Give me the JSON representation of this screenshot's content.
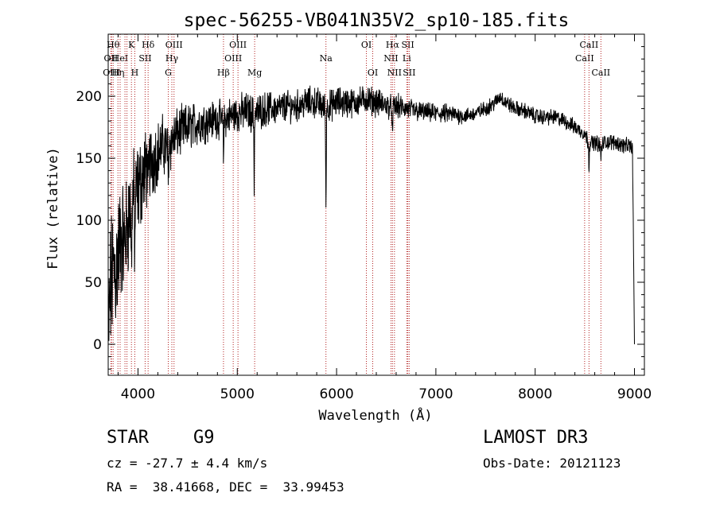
{
  "chart_data": {
    "type": "line",
    "title": "spec-56255-VB041N35V2_sp10-185.fits",
    "xlabel": "Wavelength (Å)",
    "ylabel": "Flux (relative)",
    "xlim": [
      3700,
      9100
    ],
    "ylim": [
      -25,
      250
    ],
    "xticks": [
      4000,
      5000,
      6000,
      7000,
      8000,
      9000
    ],
    "yticks": [
      0,
      50,
      100,
      150,
      200
    ],
    "spectrum_anchors": {
      "x": [
        3700,
        3720,
        3740,
        3760,
        3780,
        3800,
        3820,
        3840,
        3860,
        3880,
        3900,
        3920,
        3940,
        3960,
        3980,
        4000,
        4050,
        4100,
        4150,
        4200,
        4250,
        4300,
        4350,
        4400,
        4500,
        4600,
        4700,
        4800,
        4860,
        4900,
        5000,
        5100,
        5170,
        5200,
        5300,
        5400,
        5500,
        5600,
        5700,
        5800,
        5890,
        5950,
        6000,
        6100,
        6200,
        6300,
        6400,
        6500,
        6563,
        6600,
        6700,
        6800,
        6900,
        7000,
        7100,
        7200,
        7300,
        7400,
        7500,
        7600,
        7650,
        7700,
        7800,
        7900,
        8000,
        8100,
        8200,
        8300,
        8400,
        8498,
        8542,
        8600,
        8662,
        8700,
        8800,
        8900,
        8950,
        8980,
        9000
      ],
      "y": [
        0,
        40,
        55,
        60,
        60,
        75,
        80,
        90,
        80,
        90,
        100,
        110,
        115,
        120,
        120,
        125,
        135,
        145,
        150,
        155,
        160,
        158,
        165,
        170,
        175,
        178,
        180,
        182,
        180,
        183,
        186,
        188,
        185,
        187,
        190,
        190,
        192,
        192,
        195,
        195,
        190,
        193,
        195,
        195,
        195,
        198,
        195,
        193,
        190,
        192,
        190,
        188,
        187,
        186,
        186,
        185,
        184,
        186,
        190,
        195,
        200,
        195,
        190,
        188,
        184,
        183,
        183,
        180,
        175,
        170,
        162,
        163,
        160,
        163,
        163,
        160,
        160,
        158,
        0
      ],
      "noise_amplitude": [
        45,
        45,
        45,
        45,
        45,
        40,
        40,
        40,
        35,
        35,
        35,
        30,
        30,
        30,
        30,
        30,
        30,
        25,
        25,
        20,
        20,
        18,
        18,
        16,
        15,
        14,
        13,
        12,
        12,
        12,
        12,
        12,
        12,
        11,
        11,
        10,
        10,
        10,
        10,
        10,
        10,
        10,
        10,
        10,
        9,
        9,
        9,
        8,
        8,
        8,
        7,
        7,
        6,
        6,
        6,
        6,
        5,
        5,
        5,
        5,
        5,
        5,
        5,
        5,
        5,
        5,
        5,
        5,
        5,
        5,
        5,
        5,
        5,
        5,
        5,
        5,
        5,
        5,
        5
      ]
    },
    "absorption_dips": [
      {
        "x": 3934,
        "depth": 60
      },
      {
        "x": 3968,
        "depth": 55
      },
      {
        "x": 4102,
        "depth": 30
      },
      {
        "x": 4305,
        "depth": 25
      },
      {
        "x": 4861,
        "depth": 30
      },
      {
        "x": 5170,
        "depth": 55
      },
      {
        "x": 5893,
        "depth": 80
      },
      {
        "x": 6563,
        "depth": 25
      },
      {
        "x": 8542,
        "depth": 20
      },
      {
        "x": 8662,
        "depth": 12
      }
    ],
    "line_markers": [
      {
        "x": 3727,
        "label": "OII",
        "row": 1
      },
      {
        "x": 3734,
        "label": "OIII",
        "row": 2
      },
      {
        "x": 3750,
        "label": "Hθ",
        "row": 0
      },
      {
        "x": 3798,
        "label": "Hη",
        "row": 2
      },
      {
        "x": 3820,
        "label": "HeI",
        "row": 1
      },
      {
        "x": 3869,
        "label": "",
        "row": -1
      },
      {
        "x": 3889,
        "label": "",
        "row": -1
      },
      {
        "x": 3934,
        "label": "K",
        "row": 0
      },
      {
        "x": 3968,
        "label": "H",
        "row": 2
      },
      {
        "x": 4072,
        "label": "SII",
        "row": 1
      },
      {
        "x": 4102,
        "label": "Hδ",
        "row": 0
      },
      {
        "x": 4305,
        "label": "G",
        "row": 2
      },
      {
        "x": 4341,
        "label": "Hγ",
        "row": 1
      },
      {
        "x": 4363,
        "label": "OIII",
        "row": 0
      },
      {
        "x": 4861,
        "label": "Hβ",
        "row": 2
      },
      {
        "x": 4959,
        "label": "OIII",
        "row": 1
      },
      {
        "x": 5007,
        "label": "OIII",
        "row": 0
      },
      {
        "x": 5175,
        "label": "Mg",
        "row": 2
      },
      {
        "x": 5893,
        "label": "Na",
        "row": 1
      },
      {
        "x": 6300,
        "label": "OI",
        "row": 0
      },
      {
        "x": 6364,
        "label": "OI",
        "row": 2
      },
      {
        "x": 6548,
        "label": "NII",
        "row": 1
      },
      {
        "x": 6563,
        "label": "Hα",
        "row": 0
      },
      {
        "x": 6583,
        "label": "NII",
        "row": 2
      },
      {
        "x": 6707,
        "label": "Li",
        "row": 1
      },
      {
        "x": 6717,
        "label": "SII",
        "row": 0
      },
      {
        "x": 6731,
        "label": "SII",
        "row": 2
      },
      {
        "x": 8498,
        "label": "CaII",
        "row": 1
      },
      {
        "x": 8542,
        "label": "CaII",
        "row": 0
      },
      {
        "x": 8662,
        "label": "CaII",
        "row": 2
      }
    ],
    "marker_color": "#b22222",
    "line_color": "#000000"
  },
  "info": {
    "object_class": "STAR",
    "subclass": "G9",
    "survey": "LAMOST DR3",
    "redshift": "cz = -27.7 ± 4.4 km/s",
    "obs_date": "Obs-Date: 20121123",
    "coords": "RA =  38.41668, DEC =  33.99453"
  }
}
